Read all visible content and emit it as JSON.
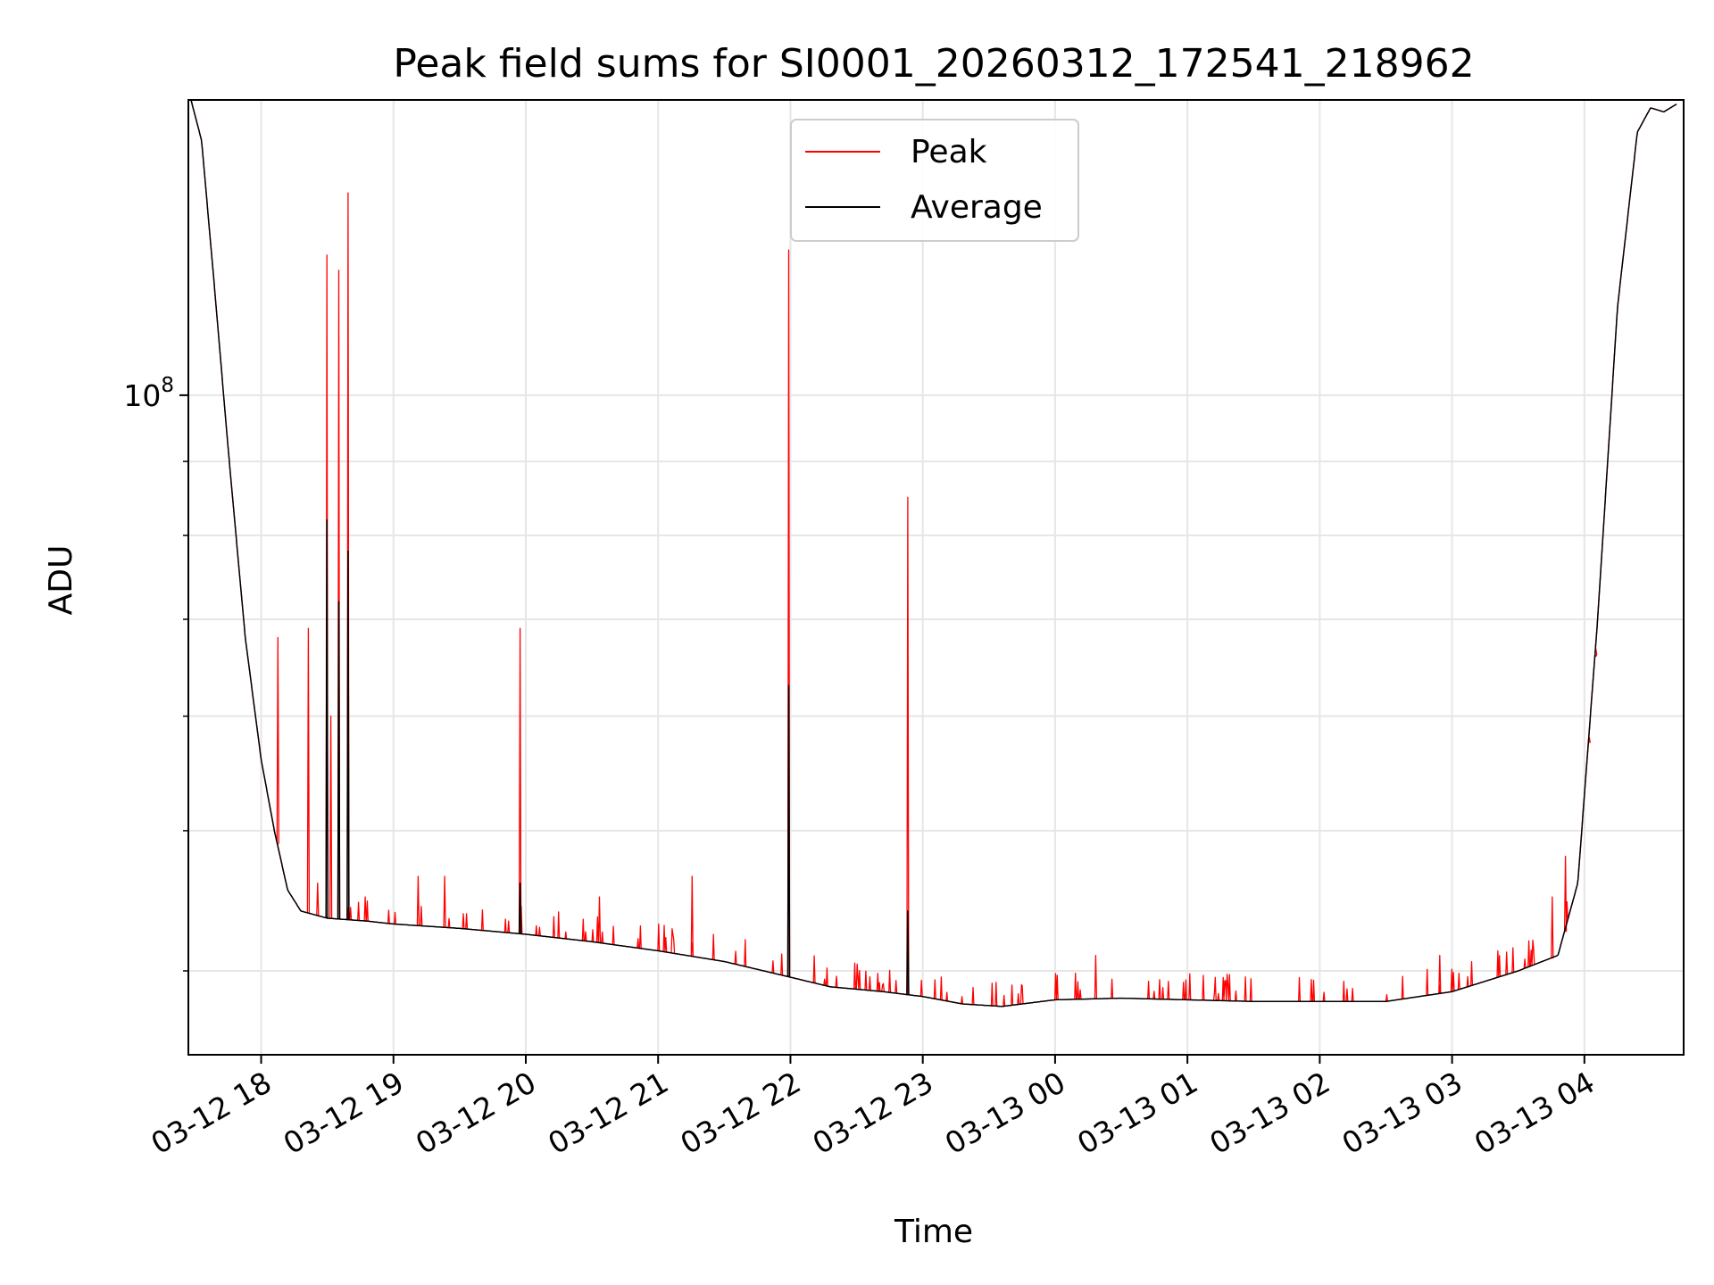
{
  "chart_data": {
    "type": "line",
    "title": "Peak field sums for SI0001_20260312_172541_218962",
    "xlabel": "Time",
    "ylabel": "ADU",
    "y_scale": "log",
    "ylim": [
      35000000,
      160000000
    ],
    "xlim_hours": [
      -0.55,
      10.75
    ],
    "x_origin_label": "03-12 18",
    "grid": true,
    "legend": "upper-center",
    "ytick_major": [
      {
        "value": 100000000,
        "base": "10",
        "exp": "8"
      }
    ],
    "ytick_minor": [
      40000000,
      50000000,
      60000000,
      70000000,
      80000000,
      90000000,
      200000000
    ],
    "xticks": [
      {
        "hour": 0,
        "label": "03-12 18"
      },
      {
        "hour": 1,
        "label": "03-12 19"
      },
      {
        "hour": 2,
        "label": "03-12 20"
      },
      {
        "hour": 3,
        "label": "03-12 21"
      },
      {
        "hour": 4,
        "label": "03-12 22"
      },
      {
        "hour": 5,
        "label": "03-12 23"
      },
      {
        "hour": 6,
        "label": "03-13 00"
      },
      {
        "hour": 7,
        "label": "03-13 01"
      },
      {
        "hour": 8,
        "label": "03-13 02"
      },
      {
        "hour": 9,
        "label": "03-13 03"
      },
      {
        "hour": 10,
        "label": "03-13 04"
      }
    ],
    "series": [
      {
        "name": "Peak",
        "color": "#ff0000",
        "baseline": [
          [
            -0.53,
            160000000
          ],
          [
            -0.45,
            150000000
          ],
          [
            -0.35,
            118000000
          ],
          [
            -0.25,
            92000000
          ],
          [
            -0.12,
            68000000
          ],
          [
            0.0,
            56000000
          ],
          [
            0.1,
            50000000
          ],
          [
            0.2,
            45500000
          ],
          [
            0.3,
            44000000
          ],
          [
            0.5,
            43500000
          ],
          [
            0.8,
            43300000
          ],
          [
            1.0,
            43100000
          ],
          [
            1.5,
            42800000
          ],
          [
            2.0,
            42400000
          ],
          [
            2.5,
            41900000
          ],
          [
            3.0,
            41300000
          ],
          [
            3.5,
            40600000
          ],
          [
            4.0,
            39600000
          ],
          [
            4.3,
            39000000
          ],
          [
            4.7,
            38700000
          ],
          [
            5.0,
            38400000
          ],
          [
            5.3,
            37950000
          ],
          [
            5.6,
            37800000
          ],
          [
            6.0,
            38200000
          ],
          [
            6.5,
            38300000
          ],
          [
            7.0,
            38200000
          ],
          [
            7.5,
            38100000
          ],
          [
            8.0,
            38100000
          ],
          [
            8.5,
            38100000
          ],
          [
            9.0,
            38700000
          ],
          [
            9.5,
            40000000
          ],
          [
            9.8,
            41000000
          ],
          [
            9.95,
            46000000
          ],
          [
            10.1,
            70000000
          ],
          [
            10.25,
            115000000
          ],
          [
            10.4,
            152000000
          ],
          [
            10.5,
            158000000
          ],
          [
            10.6,
            157000000
          ],
          [
            10.7,
            159000000
          ]
        ],
        "spikes": [
          [
            0.12,
            68000000
          ],
          [
            0.35,
            69000000
          ],
          [
            0.42,
            46000000
          ],
          [
            0.49,
            125000000
          ],
          [
            0.52,
            60000000
          ],
          [
            0.58,
            122000000
          ],
          [
            0.65,
            138000000
          ],
          [
            0.78,
            45000000
          ],
          [
            1.18,
            46500000
          ],
          [
            1.38,
            46500000
          ],
          [
            1.95,
            69000000
          ],
          [
            2.55,
            45000000
          ],
          [
            3.25,
            46500000
          ],
          [
            3.98,
            126000000
          ],
          [
            4.88,
            85000000
          ],
          [
            6.3,
            41000000
          ],
          [
            8.9,
            41000000
          ],
          [
            9.75,
            45000000
          ],
          [
            9.85,
            48000000
          ],
          [
            10.03,
            58000000
          ],
          [
            10.08,
            66000000
          ]
        ]
      },
      {
        "name": "Average",
        "color": "#000000",
        "baseline": [
          [
            -0.53,
            160000000
          ],
          [
            -0.45,
            150000000
          ],
          [
            -0.35,
            118000000
          ],
          [
            -0.25,
            92000000
          ],
          [
            -0.12,
            68000000
          ],
          [
            0.0,
            56000000
          ],
          [
            0.1,
            50000000
          ],
          [
            0.2,
            45500000
          ],
          [
            0.3,
            44000000
          ],
          [
            0.5,
            43500000
          ],
          [
            0.8,
            43300000
          ],
          [
            1.0,
            43100000
          ],
          [
            1.5,
            42800000
          ],
          [
            2.0,
            42400000
          ],
          [
            2.5,
            41900000
          ],
          [
            3.0,
            41300000
          ],
          [
            3.5,
            40600000
          ],
          [
            4.0,
            39600000
          ],
          [
            4.3,
            39000000
          ],
          [
            4.7,
            38700000
          ],
          [
            5.0,
            38400000
          ],
          [
            5.3,
            37950000
          ],
          [
            5.6,
            37800000
          ],
          [
            6.0,
            38200000
          ],
          [
            6.5,
            38300000
          ],
          [
            7.0,
            38200000
          ],
          [
            7.5,
            38100000
          ],
          [
            8.0,
            38100000
          ],
          [
            8.5,
            38100000
          ],
          [
            9.0,
            38700000
          ],
          [
            9.5,
            40000000
          ],
          [
            9.8,
            41000000
          ],
          [
            9.95,
            46000000
          ],
          [
            10.1,
            70000000
          ],
          [
            10.25,
            115000000
          ],
          [
            10.4,
            152000000
          ],
          [
            10.5,
            158000000
          ],
          [
            10.6,
            157000000
          ],
          [
            10.7,
            159000000
          ]
        ],
        "spikes": [
          [
            0.49,
            82000000
          ],
          [
            0.58,
            72000000
          ],
          [
            0.65,
            78000000
          ],
          [
            1.95,
            46000000
          ],
          [
            3.98,
            63000000
          ],
          [
            4.88,
            44000000
          ]
        ]
      }
    ]
  }
}
